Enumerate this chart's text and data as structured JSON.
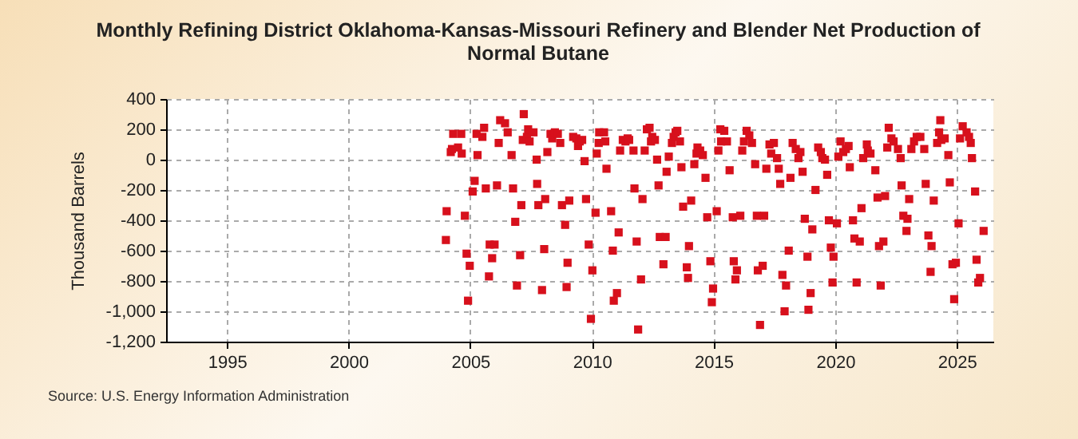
{
  "chart_data": {
    "type": "scatter",
    "title": "Monthly Refining District Oklahoma-Kansas-Missouri Refinery and Blender Net Production of Normal Butane",
    "ylabel": "Thousand Barrels",
    "annotations": [
      "Source: U.S. Energy Information Administration"
    ],
    "x": [
      2004.03,
      2004.0,
      2004.2,
      2004.25,
      2004.3,
      2004.5,
      2004.63,
      2004.65,
      2004.78,
      2004.85,
      2004.91,
      2004.98,
      2005.1,
      2005.18,
      2005.26,
      2005.3,
      2005.5,
      2005.57,
      2005.64,
      2005.77,
      2005.8,
      2005.9,
      2006.0,
      2006.1,
      2006.17,
      2006.23,
      2006.43,
      2006.54,
      2006.7,
      2006.76,
      2006.85,
      2006.92,
      2007.05,
      2007.1,
      2007.16,
      2007.2,
      2007.33,
      2007.38,
      2007.44,
      2007.6,
      2007.73,
      2007.75,
      2007.8,
      2007.95,
      2008.04,
      2008.08,
      2008.17,
      2008.3,
      2008.37,
      2008.48,
      2008.6,
      2008.7,
      2008.77,
      2008.9,
      2008.96,
      2009.0,
      2009.07,
      2009.23,
      2009.36,
      2009.43,
      2009.5,
      2009.6,
      2009.7,
      2009.76,
      2009.87,
      2009.96,
      2010.02,
      2010.15,
      2010.2,
      2010.28,
      2010.3,
      2010.5,
      2010.55,
      2010.6,
      2010.79,
      2010.86,
      2010.9,
      2011.03,
      2011.1,
      2011.16,
      2011.27,
      2011.38,
      2011.47,
      2011.53,
      2011.71,
      2011.75,
      2011.84,
      2011.9,
      2012.02,
      2012.08,
      2012.17,
      2012.26,
      2012.37,
      2012.43,
      2012.48,
      2012.59,
      2012.68,
      2012.74,
      2012.79,
      2012.94,
      2013.03,
      2013.07,
      2013.16,
      2013.29,
      2013.36,
      2013.44,
      2013.51,
      2013.62,
      2013.68,
      2013.75,
      2013.9,
      2013.95,
      2013.99,
      2014.08,
      2014.21,
      2014.3,
      2014.34,
      2014.45,
      2014.56,
      2014.67,
      2014.74,
      2014.87,
      2014.93,
      2014.98,
      2015.13,
      2015.2,
      2015.28,
      2015.31,
      2015.44,
      2015.55,
      2015.66,
      2015.79,
      2015.83,
      2015.9,
      2015.96,
      2016.1,
      2016.18,
      2016.25,
      2016.36,
      2016.47,
      2016.58,
      2016.71,
      2016.78,
      2016.82,
      2016.91,
      2017.02,
      2017.08,
      2017.17,
      2017.3,
      2017.37,
      2017.48,
      2017.61,
      2017.68,
      2017.74,
      2017.83,
      2017.92,
      2017.98,
      2018.09,
      2018.16,
      2018.25,
      2018.38,
      2018.49,
      2018.57,
      2018.66,
      2018.75,
      2018.86,
      2018.9,
      2018.99,
      2019.06,
      2019.19,
      2019.3,
      2019.41,
      2019.47,
      2019.58,
      2019.67,
      2019.74,
      2019.82,
      2019.89,
      2019.93,
      2020.07,
      2020.13,
      2020.22,
      2020.33,
      2020.44,
      2020.55,
      2020.6,
      2020.73,
      2020.79,
      2020.88,
      2021.01,
      2021.08,
      2021.15,
      2021.3,
      2021.34,
      2021.45,
      2021.65,
      2021.74,
      2021.8,
      2021.87,
      2021.98,
      2022.05,
      2022.14,
      2022.2,
      2022.31,
      2022.4,
      2022.58,
      2022.69,
      2022.73,
      2022.8,
      2022.93,
      2022.97,
      2023.04,
      2023.13,
      2023.24,
      2023.35,
      2023.5,
      2023.66,
      2023.72,
      2023.83,
      2023.92,
      2023.96,
      2024.05,
      2024.19,
      2024.27,
      2024.32,
      2024.36,
      2024.5,
      2024.65,
      2024.71,
      2024.82,
      2024.89,
      2024.96,
      2025.07,
      2025.13,
      2025.24,
      2025.4,
      2025.5,
      2025.57,
      2025.62,
      2025.75,
      2025.81,
      2025.88,
      2025.95,
      2026.1
    ],
    "series": [
      {
        "color": "#d7101c",
        "values": [
          -340,
          -530,
          50,
          70,
          170,
          80,
          170,
          40,
          -370,
          -620,
          -930,
          -700,
          -210,
          -140,
          170,
          30,
          150,
          210,
          -190,
          -770,
          -560,
          -650,
          -560,
          -170,
          110,
          260,
          240,
          180,
          30,
          -190,
          -410,
          -830,
          -630,
          -300,
          130,
          300,
          150,
          200,
          120,
          180,
          0,
          -160,
          -300,
          -860,
          -590,
          -260,
          50,
          170,
          140,
          180,
          170,
          110,
          -300,
          -430,
          -840,
          -680,
          -270,
          150,
          140,
          90,
          120,
          130,
          -10,
          -260,
          -560,
          -1050,
          -730,
          -350,
          40,
          110,
          180,
          180,
          120,
          -60,
          -340,
          -600,
          -930,
          -880,
          -480,
          60,
          130,
          120,
          140,
          130,
          60,
          -190,
          -540,
          -1120,
          -790,
          -260,
          60,
          200,
          210,
          120,
          150,
          130,
          0,
          -170,
          -510,
          -690,
          -510,
          -80,
          20,
          110,
          150,
          180,
          190,
          120,
          -50,
          -310,
          -710,
          -780,
          -570,
          -270,
          -30,
          40,
          80,
          60,
          30,
          -120,
          -380,
          -670,
          -940,
          -850,
          -340,
          60,
          200,
          120,
          190,
          120,
          -70,
          -380,
          -670,
          -790,
          -730,
          -370,
          60,
          120,
          190,
          160,
          110,
          -30,
          -370,
          -730,
          -1090,
          -700,
          -370,
          -60,
          100,
          40,
          110,
          10,
          -60,
          -160,
          -760,
          -1000,
          -830,
          -600,
          -120,
          110,
          70,
          10,
          50,
          -80,
          -390,
          -640,
          -990,
          -880,
          -460,
          -200,
          80,
          50,
          10,
          0,
          -100,
          -400,
          -580,
          -810,
          -640,
          -420,
          20,
          120,
          50,
          70,
          90,
          -50,
          -400,
          -520,
          -810,
          -540,
          -320,
          10,
          100,
          60,
          40,
          -70,
          -250,
          -570,
          -830,
          -540,
          -240,
          80,
          210,
          140,
          120,
          70,
          10,
          -170,
          -370,
          -470,
          -390,
          -260,
          70,
          120,
          150,
          150,
          70,
          -160,
          -500,
          -740,
          -570,
          -270,
          110,
          180,
          260,
          130,
          140,
          30,
          -150,
          -690,
          -920,
          -680,
          -420,
          140,
          220,
          180,
          150,
          110,
          10,
          -210,
          -660,
          -810,
          -780,
          -470
        ]
      }
    ],
    "xlim": [
      1992.5,
      2026.5
    ],
    "xticks": [
      1995,
      2000,
      2005,
      2010,
      2015,
      2020,
      2025
    ],
    "ylim": [
      -1200,
      400
    ],
    "yticks": [
      {
        "value": -1200,
        "label": "-1,200"
      },
      {
        "value": -1000,
        "label": "-1,000"
      },
      -800,
      -600,
      -400,
      -200,
      0,
      200,
      400
    ],
    "grid": true,
    "marker": "square"
  }
}
